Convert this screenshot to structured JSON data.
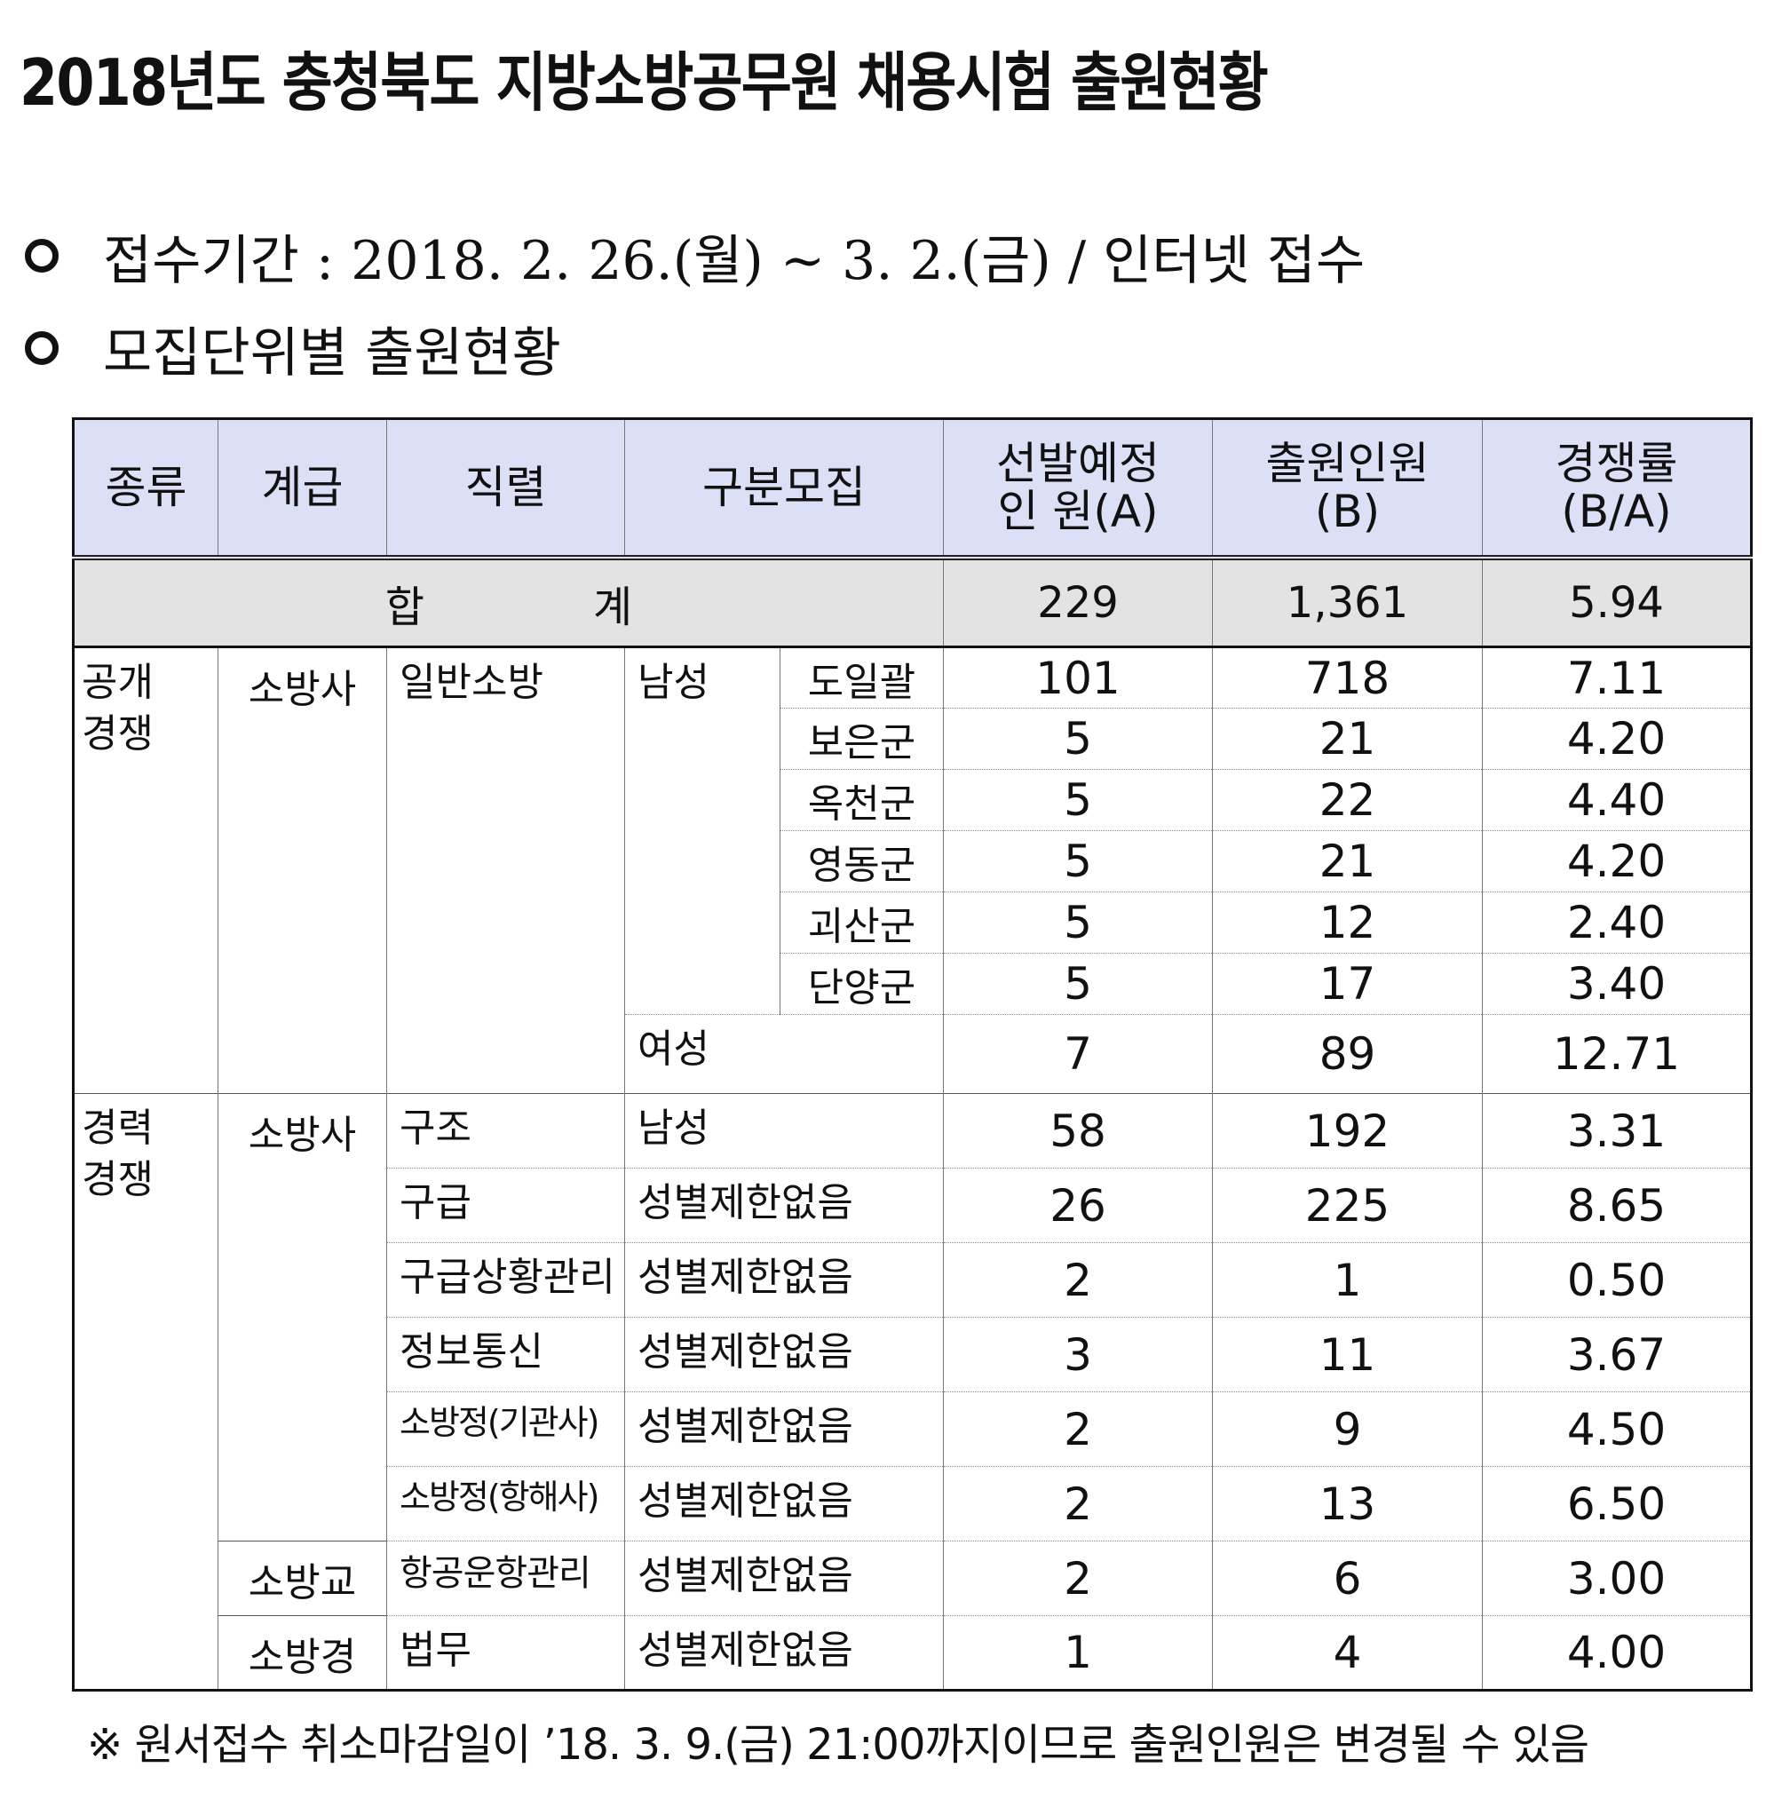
{
  "title": "2018년도 충청북도 지방소방공무원 채용시험 출원현황",
  "bullets": [
    "접수기간 : 2018. 2. 26.(월) ~ 3. 2.(금) / 인터넷 접수",
    "모집단위별 출원현황"
  ],
  "table": {
    "headers": {
      "type": "종류",
      "grade": "계급",
      "position": "직렬",
      "division": "구분모집",
      "planned_l1": "선발예정",
      "planned_l2": "인 원(A)",
      "applicants_l1": "출원인원",
      "applicants_l2": "(B)",
      "ratio_l1": "경쟁률",
      "ratio_l2": "(B/A)"
    },
    "total": {
      "label_1": "합",
      "label_2": "계",
      "planned": "229",
      "applicants": "1,361",
      "ratio": "5.94"
    },
    "open": {
      "type_l1": "공개",
      "type_l2": "경쟁",
      "grade": "소방사",
      "position": "일반소방",
      "male": "남성",
      "female": "여성",
      "rows": [
        {
          "region": "도일괄",
          "planned": "101",
          "applicants": "718",
          "ratio": "7.11"
        },
        {
          "region": "보은군",
          "planned": "5",
          "applicants": "21",
          "ratio": "4.20"
        },
        {
          "region": "옥천군",
          "planned": "5",
          "applicants": "22",
          "ratio": "4.40"
        },
        {
          "region": "영동군",
          "planned": "5",
          "applicants": "21",
          "ratio": "4.20"
        },
        {
          "region": "괴산군",
          "planned": "5",
          "applicants": "12",
          "ratio": "2.40"
        },
        {
          "region": "단양군",
          "planned": "5",
          "applicants": "17",
          "ratio": "3.40"
        }
      ],
      "female_row": {
        "planned": "7",
        "applicants": "89",
        "ratio": "12.71"
      }
    },
    "career": {
      "type_l1": "경력",
      "type_l2": "경쟁",
      "rows": [
        {
          "grade": "소방사",
          "position": "구조",
          "division": "남성",
          "planned": "58",
          "applicants": "192",
          "ratio": "3.31"
        },
        {
          "position": "구급",
          "division": "성별제한없음",
          "planned": "26",
          "applicants": "225",
          "ratio": "8.65"
        },
        {
          "position": "구급상황관리",
          "division": "성별제한없음",
          "planned": "2",
          "applicants": "1",
          "ratio": "0.50"
        },
        {
          "position": "정보통신",
          "division": "성별제한없음",
          "planned": "3",
          "applicants": "11",
          "ratio": "3.67"
        },
        {
          "position": "소방정(기관사)",
          "division": "성별제한없음",
          "planned": "2",
          "applicants": "9",
          "ratio": "4.50"
        },
        {
          "position": "소방정(항해사)",
          "division": "성별제한없음",
          "planned": "2",
          "applicants": "13",
          "ratio": "6.50"
        },
        {
          "grade": "소방교",
          "position": "항공운항관리",
          "division": "성별제한없음",
          "planned": "2",
          "applicants": "6",
          "ratio": "3.00"
        },
        {
          "grade": "소방경",
          "position": "법무",
          "division": "성별제한없음",
          "planned": "1",
          "applicants": "4",
          "ratio": "4.00"
        }
      ]
    }
  },
  "footnote": "※ 원서접수 취소마감일이 ’18. 3. 9.(금) 21:00까지이므로 출원인원은 변경될 수 있음"
}
